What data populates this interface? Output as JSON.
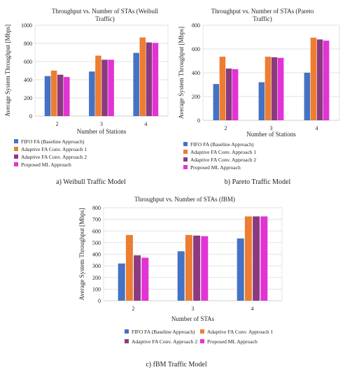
{
  "colors": {
    "fifo": "#4472c4",
    "adaptive1": "#ed7d31",
    "adaptive2": "#8b3a7f",
    "ml": "#e233d4"
  },
  "chart_data": [
    {
      "id": "weibull",
      "type": "bar",
      "title_lines": [
        "Throughput vs. Number of STAs (Weibull",
        "Traffic)"
      ],
      "xlabel": "Number of Stations",
      "ylabel": "Average System Throughput [Mbps]",
      "categories": [
        "2",
        "3",
        "4"
      ],
      "ylim": [
        0,
        1000
      ],
      "yticks": [
        0,
        200,
        400,
        600,
        800,
        1000
      ],
      "grid": true,
      "legend_placement": "bottom-left-column",
      "series": [
        {
          "name": "FIFO FA  (Baseline Approach)",
          "color_key": "fifo",
          "values": [
            440,
            490,
            695
          ]
        },
        {
          "name": "Adaptive FA Conv. Approach 1",
          "color_key": "adaptive1",
          "values": [
            500,
            665,
            865
          ]
        },
        {
          "name": "Adaptive FA Conv. Approach  2",
          "color_key": "adaptive2",
          "values": [
            455,
            620,
            810
          ]
        },
        {
          "name": "Proposed ML Approach",
          "color_key": "ml",
          "values": [
            430,
            620,
            805
          ]
        }
      ],
      "caption": "a) Weibull Traffic Model"
    },
    {
      "id": "pareto",
      "type": "bar",
      "title_lines": [
        "Throughput vs. Number of STAs (Pareto",
        "Traffic)"
      ],
      "xlabel": "Number of Stations",
      "ylabel": "Average System Throughput [Mbps]",
      "categories": [
        "2",
        "3",
        "4"
      ],
      "ylim": [
        0,
        800
      ],
      "yticks": [
        0,
        200,
        400,
        600,
        800
      ],
      "grid": true,
      "legend_placement": "bottom-left-column",
      "series": [
        {
          "name": "FIFO FA  (Baseline Approach)",
          "color_key": "fifo",
          "values": [
            305,
            320,
            400
          ]
        },
        {
          "name": "Adaptive FA Conv. Approach 1",
          "color_key": "adaptive1",
          "values": [
            535,
            535,
            695
          ]
        },
        {
          "name": "Adaptive FA Conv. Approach  2",
          "color_key": "adaptive2",
          "values": [
            435,
            530,
            680
          ]
        },
        {
          "name": "Proposed ML Approach",
          "color_key": "ml",
          "values": [
            430,
            525,
            670
          ]
        }
      ],
      "caption": "b) Pareto Traffic Model"
    },
    {
      "id": "fbm",
      "type": "bar",
      "title_lines": [
        "Throughput vs. Number of STAs (fBM)"
      ],
      "xlabel": "Number of STAs",
      "ylabel": "Average System Throughput [Mbps]",
      "categories": [
        "2",
        "3",
        "4"
      ],
      "ylim": [
        0,
        800
      ],
      "yticks": [
        0,
        100,
        200,
        300,
        400,
        500,
        600,
        700,
        800
      ],
      "grid": true,
      "legend_placement": "bottom-two-columns",
      "series": [
        {
          "name": "FIFO FA  (Baseline Approach)",
          "color_key": "fifo",
          "values": [
            320,
            425,
            535
          ]
        },
        {
          "name": "Adaptive FA Conv. Approach 1",
          "color_key": "adaptive1",
          "values": [
            565,
            565,
            725
          ]
        },
        {
          "name": "Adaptive FA Conv. Approach  2",
          "color_key": "adaptive2",
          "values": [
            390,
            560,
            725
          ]
        },
        {
          "name": "Proposed ML Approach",
          "color_key": "ml",
          "values": [
            370,
            555,
            725
          ]
        }
      ],
      "caption": "c) fBM Traffic Model"
    }
  ]
}
